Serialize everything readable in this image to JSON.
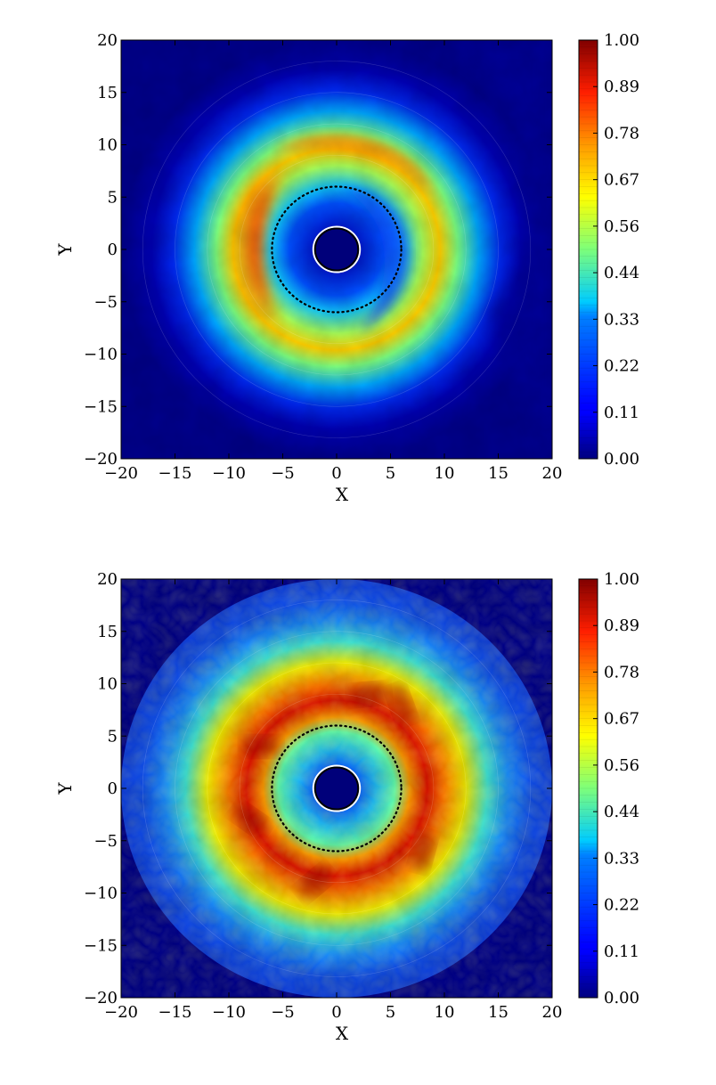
{
  "chart_data": [
    {
      "type": "heatmap",
      "title": "",
      "xlabel": "X",
      "ylabel": "Y",
      "xlim": [
        -20,
        20
      ],
      "ylim": [
        -20,
        20
      ],
      "x_ticks": [
        "−20",
        "−15",
        "−10",
        "−5",
        "0",
        "5",
        "10",
        "15",
        "20"
      ],
      "y_ticks": [
        "−20",
        "−15",
        "−10",
        "−5",
        "0",
        "5",
        "10",
        "15",
        "20"
      ],
      "colorbar": {
        "range": [
          0.0,
          1.0
        ],
        "ticks": [
          "0.00",
          "0.11",
          "0.22",
          "0.33",
          "0.44",
          "0.56",
          "0.67",
          "0.78",
          "0.89",
          "1.00"
        ],
        "colormap": "jet"
      },
      "grid": false,
      "inner_circle_radius": 2,
      "dotted_circle_radius": 6,
      "pattern": "single-armed spiral, peak near (-8, 0)"
    },
    {
      "type": "heatmap",
      "title": "",
      "xlabel": "X",
      "ylabel": "Y",
      "xlim": [
        -20,
        20
      ],
      "ylim": [
        -20,
        20
      ],
      "x_ticks": [
        "−20",
        "−15",
        "−10",
        "−5",
        "0",
        "5",
        "10",
        "15",
        "20"
      ],
      "y_ticks": [
        "−20",
        "−15",
        "−10",
        "−5",
        "0",
        "5",
        "10",
        "15",
        "20"
      ],
      "colorbar": {
        "range": [
          0.0,
          1.0
        ],
        "ticks": [
          "0.00",
          "0.11",
          "0.22",
          "0.33",
          "0.44",
          "0.56",
          "0.67",
          "0.78",
          "0.89",
          "1.00"
        ],
        "colormap": "jet"
      },
      "grid": false,
      "inner_circle_radius": 2,
      "dotted_circle_radius": 6,
      "pattern": "turbulent ring, peak near radius 8"
    }
  ]
}
